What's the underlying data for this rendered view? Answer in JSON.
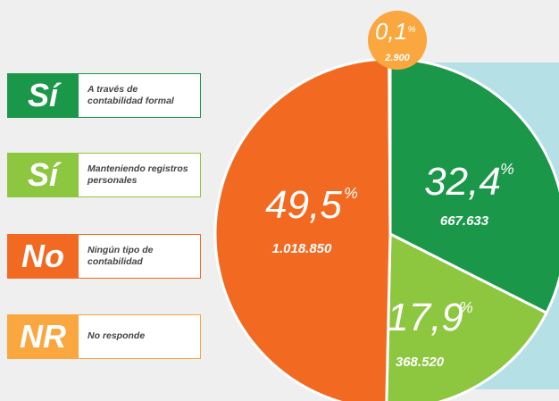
{
  "chart_data": {
    "type": "pie",
    "keys": [
      "Sí",
      "Sí",
      "No",
      "NR"
    ],
    "categories": [
      "A través de contabilidad formal",
      "Manteniendo registros personales",
      "Ningún tipo de contabilidad",
      "No responde"
    ],
    "values": [
      32.4,
      17.9,
      49.5,
      0.1
    ],
    "value_labels": [
      "32,4",
      "17,9",
      "49,5",
      "0,1"
    ],
    "unit": "%",
    "counts": [
      667633,
      368520,
      1018850,
      2900
    ],
    "count_labels": [
      "667.633",
      "368.520",
      "1.018.850",
      "2.900"
    ],
    "colors": [
      "#1a9748",
      "#8dc63f",
      "#f26a21",
      "#f9a73e"
    ]
  }
}
